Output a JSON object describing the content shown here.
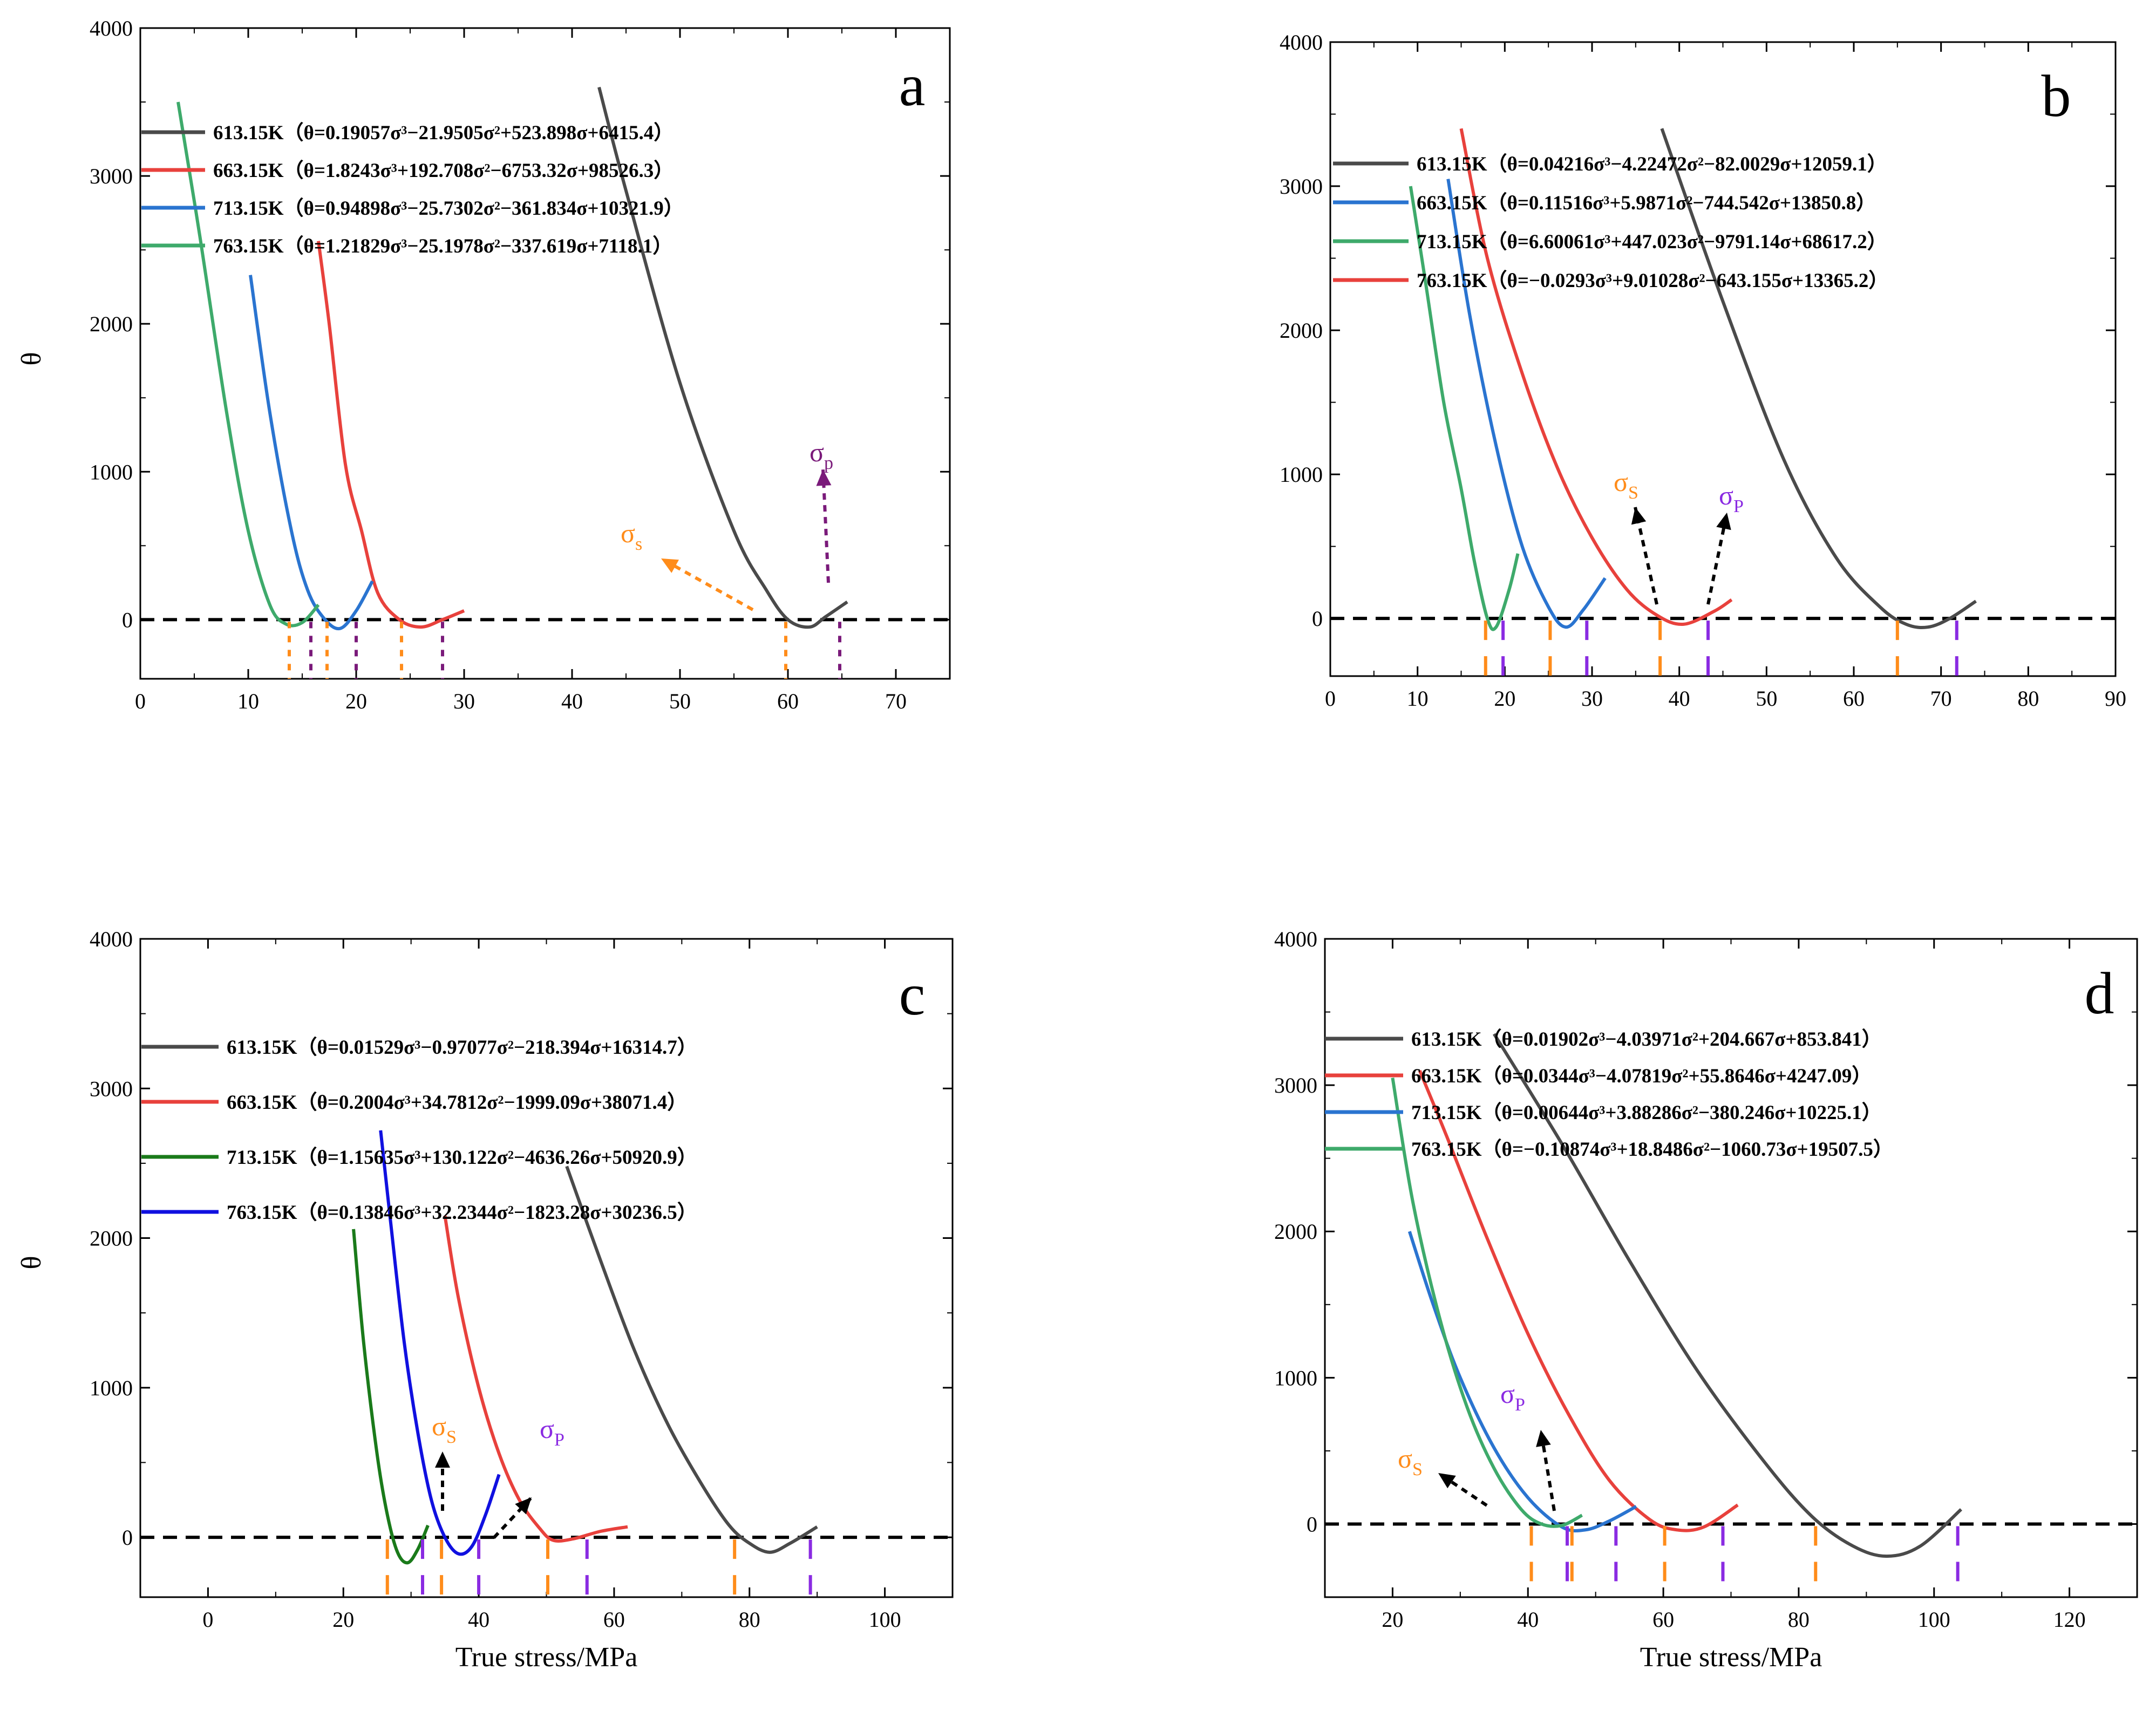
{
  "colors": {
    "black": "#4a4a4a",
    "red": "#e8413c",
    "blue": "#2a74d0",
    "green": "#3eaa6b",
    "dkgreen": "#1a7a1a",
    "navy": "#1010e0",
    "orange": "#ff8c1a",
    "violet": "#8a2be2",
    "purple": "#7a1a7a"
  },
  "chart_data": [
    {
      "id": "a",
      "type": "line",
      "panel_label": "a",
      "title": "",
      "xlabel": "",
      "ylabel": "θ",
      "xlim": [
        0,
        75
      ],
      "ylim": [
        -400,
        4000
      ],
      "xticks": [
        "0",
        "10",
        "20",
        "30",
        "40",
        "50",
        "60",
        "70"
      ],
      "yticks": [
        "0",
        "1000",
        "2000",
        "3000",
        "4000"
      ],
      "series": [
        {
          "name": "613.15K",
          "legend": "613.15K（θ=0.19057σ³−21.9505σ²+523.898σ+6415.4）",
          "color": "black",
          "x": [
            42.5,
            45,
            50,
            55,
            58,
            60,
            62,
            63.5,
            65.5
          ],
          "y": [
            3600,
            2900,
            1600,
            600,
            200,
            0,
            -50,
            20,
            120
          ]
        },
        {
          "name": "663.15K",
          "legend": "663.15K（θ=1.8243σ³+192.708σ²−6753.32σ+98526.3）",
          "color": "red",
          "x": [
            16.5,
            17.5,
            19,
            20.5,
            22,
            24,
            26,
            28,
            30
          ],
          "y": [
            2560,
            2000,
            1050,
            600,
            180,
            0,
            -50,
            0,
            60
          ]
        },
        {
          "name": "713.15K",
          "legend": "713.15K（θ=0.94898σ³−25.7302σ²−361.834σ+10321.9）",
          "color": "blue",
          "x": [
            10.2,
            12,
            14,
            15.5,
            17,
            18.5,
            20,
            21.5
          ],
          "y": [
            2330,
            1400,
            600,
            200,
            10,
            -60,
            60,
            260
          ]
        },
        {
          "name": "763.15K",
          "legend": "763.15K（θ=1.21829σ³−25.1978σ²−337.619σ+7118.1）",
          "color": "green",
          "x": [
            3.5,
            5.5,
            8,
            10,
            12,
            13.5,
            15,
            16.5
          ],
          "y": [
            3500,
            2600,
            1400,
            600,
            100,
            -30,
            -20,
            100
          ]
        }
      ],
      "markers_s": [
        13.8,
        17.3,
        24.2,
        59.8
      ],
      "markers_p": [
        15.8,
        20.0,
        28.0,
        64.8
      ],
      "annotations": [
        {
          "text": "σ",
          "sub": "s",
          "color": "orange"
        },
        {
          "text": "σ",
          "sub": "p",
          "color": "purple"
        }
      ]
    },
    {
      "id": "b",
      "type": "line",
      "panel_label": "b",
      "title": "",
      "xlabel": "",
      "ylabel": "",
      "xlim": [
        0,
        90
      ],
      "ylim": [
        -400,
        4000
      ],
      "xticks": [
        "0",
        "10",
        "20",
        "30",
        "40",
        "50",
        "60",
        "70",
        "80",
        "90"
      ],
      "yticks": [
        "0",
        "1000",
        "2000",
        "3000",
        "4000"
      ],
      "series": [
        {
          "name": "613.15K",
          "legend": "613.15K（θ=0.04216σ³−4.22472σ²−82.0029σ+12059.1）",
          "color": "black",
          "x": [
            38,
            45,
            52,
            58,
            63,
            66,
            68.5,
            71,
            74
          ],
          "y": [
            3400,
            2200,
            1100,
            420,
            80,
            -40,
            -60,
            0,
            120
          ]
        },
        {
          "name": "663.15K",
          "legend": "663.15K（θ=0.11516σ³+5.9871σ²−744.542σ+13850.8）",
          "color": "blue",
          "x": [
            13.5,
            16,
            19,
            22,
            25,
            27,
            29,
            31.5
          ],
          "y": [
            3050,
            2100,
            1200,
            500,
            80,
            -60,
            60,
            280
          ]
        },
        {
          "name": "713.15K",
          "legend": "713.15K（θ=6.60061σ³+447.023σ²−9791.14σ+68617.2）",
          "color": "green",
          "x": [
            9.2,
            11,
            13,
            15,
            16.5,
            18,
            19,
            20.5,
            21.5
          ],
          "y": [
            3000,
            2300,
            1500,
            900,
            400,
            0,
            -60,
            200,
            450
          ]
        },
        {
          "name": "763.15K",
          "legend": "763.15K（θ=−0.0293σ³+9.01028σ²−643.155σ+13365.2）",
          "color": "red",
          "x": [
            15,
            18,
            22,
            26,
            30,
            34,
            37.5,
            40.5,
            44,
            46
          ],
          "y": [
            3400,
            2500,
            1700,
            1050,
            560,
            200,
            20,
            -40,
            50,
            130
          ]
        }
      ],
      "markers_s": [
        17.8,
        25.2,
        37.8,
        65.0
      ],
      "markers_p": [
        19.8,
        29.4,
        43.3,
        71.8
      ],
      "annotations": [
        {
          "text": "σ",
          "sub": "S",
          "color": "orange"
        },
        {
          "text": "σ",
          "sub": "P",
          "color": "violet"
        }
      ]
    },
    {
      "id": "c",
      "type": "line",
      "panel_label": "c",
      "title": "",
      "xlabel": "True stress/MPa",
      "ylabel": "θ",
      "xlim": [
        -10,
        110
      ],
      "ylim": [
        -400,
        4000
      ],
      "xticks": [
        "0",
        "20",
        "40",
        "60",
        "80",
        "100"
      ],
      "yticks": [
        "0",
        "1000",
        "2000",
        "3000",
        "4000"
      ],
      "series": [
        {
          "name": "613.15K",
          "legend": "613.15K（θ=0.01529σ³−0.97077σ²−218.394σ+16314.7）",
          "color": "black",
          "x": [
            53,
            58,
            63,
            68,
            73,
            77,
            80,
            83,
            86,
            90
          ],
          "y": [
            2480,
            1850,
            1250,
            750,
            350,
            80,
            -40,
            -100,
            -40,
            70
          ]
        },
        {
          "name": "663.15K",
          "legend": "663.15K（θ=0.2004σ³+34.7812σ²−1999.09σ+38071.4）",
          "color": "red",
          "x": [
            35,
            37,
            40,
            43,
            46,
            49,
            51,
            54,
            58,
            62
          ],
          "y": [
            2150,
            1600,
            1000,
            560,
            250,
            60,
            -20,
            -10,
            40,
            70
          ]
        },
        {
          "name": "713.15K",
          "legend": "713.15K（θ=1.15635σ³+130.122σ²−4636.26σ+50920.9）",
          "color": "dkgreen",
          "x": [
            21.5,
            23,
            25,
            26.5,
            28,
            29.5,
            31,
            32.5
          ],
          "y": [
            2060,
            1300,
            550,
            150,
            -100,
            -170,
            -80,
            80
          ]
        },
        {
          "name": "763.15K",
          "legend": "763.15K（θ=0.13846σ³+32.2344σ²−1823.28σ+30236.5）",
          "color": "navy",
          "x": [
            25.5,
            27,
            29,
            31,
            33,
            35,
            37,
            39,
            41,
            43
          ],
          "y": [
            2720,
            2100,
            1300,
            700,
            250,
            0,
            -110,
            -60,
            150,
            420
          ]
        }
      ],
      "markers_s": [
        26.5,
        34.5,
        50.2,
        77.8
      ],
      "markers_p": [
        31.7,
        40.0,
        56.0,
        89.0
      ],
      "annotations": [
        {
          "text": "σ",
          "sub": "S",
          "color": "orange"
        },
        {
          "text": "σ",
          "sub": "P",
          "color": "violet"
        }
      ]
    },
    {
      "id": "d",
      "type": "line",
      "panel_label": "d",
      "title": "",
      "xlabel": "True stress/MPa",
      "ylabel": "",
      "xlim": [
        10,
        130
      ],
      "ylim": [
        -500,
        4000
      ],
      "xticks": [
        "20",
        "40",
        "60",
        "80",
        "100",
        "120"
      ],
      "yticks": [
        "0",
        "1000",
        "2000",
        "3000",
        "4000"
      ],
      "series": [
        {
          "name": "613.15K",
          "legend": "613.15K（θ=0.01902σ³−4.03971σ²+204.667σ+853.841）",
          "color": "black",
          "x": [
            35,
            45,
            55,
            65,
            75,
            82,
            88,
            93,
            98,
            104
          ],
          "y": [
            3350,
            2600,
            1800,
            1050,
            420,
            50,
            -150,
            -220,
            -150,
            100
          ]
        },
        {
          "name": "663.15K",
          "legend": "663.15K（θ=0.0344σ³−4.07819σ²+55.8646σ+4247.09）",
          "color": "red",
          "x": [
            24,
            28,
            34,
            40,
            46,
            52,
            58,
            62,
            66,
            71
          ],
          "y": [
            3100,
            2650,
            1950,
            1300,
            750,
            300,
            30,
            -40,
            -20,
            130
          ]
        },
        {
          "name": "713.15K",
          "legend": "713.15K（θ=0.00644σ³+3.88286σ²−380.246σ+10225.1）",
          "color": "blue",
          "x": [
            22.5,
            26,
            30,
            35,
            40,
            45,
            48.5,
            52,
            56
          ],
          "y": [
            2000,
            1500,
            1000,
            520,
            180,
            -20,
            -40,
            20,
            120
          ]
        },
        {
          "name": "763.15K",
          "legend": "763.15K（θ=−0.10874σ³+18.8486σ²−1060.73σ+19507.5）",
          "color": "green",
          "x": [
            20,
            23,
            27,
            31,
            35,
            39,
            42,
            45,
            48
          ],
          "y": [
            3050,
            2200,
            1400,
            800,
            380,
            100,
            0,
            -10,
            60
          ]
        }
      ],
      "markers_s": [
        40.5,
        46.5,
        60.2,
        82.5
      ],
      "markers_p": [
        45.8,
        53.0,
        68.8,
        103.5
      ],
      "annotations": [
        {
          "text": "σ",
          "sub": "S",
          "color": "orange"
        },
        {
          "text": "σ",
          "sub": "P",
          "color": "violet"
        }
      ]
    }
  ]
}
